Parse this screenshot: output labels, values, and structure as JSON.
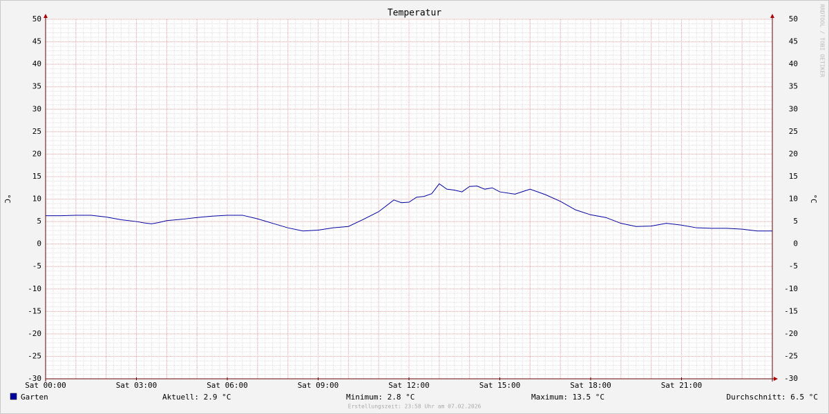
{
  "chart_data": {
    "type": "line",
    "title": "Temperatur",
    "y_label": "°C",
    "watermark": "RRDTOOL / TOBI OETIKER",
    "x": [
      0,
      0.5,
      1,
      1.5,
      2,
      2.5,
      3,
      3.25,
      3.5,
      3.75,
      4,
      4.5,
      5,
      5.5,
      6,
      6.5,
      7,
      7.5,
      8,
      8.5,
      9,
      9.5,
      10,
      10.5,
      11,
      11.5,
      11.75,
      12,
      12.25,
      12.5,
      12.75,
      13,
      13.25,
      13.5,
      13.75,
      14,
      14.25,
      14.5,
      14.75,
      15,
      15.5,
      16,
      16.5,
      17,
      17.5,
      18,
      18.5,
      19,
      19.5,
      20,
      20.5,
      21,
      21.5,
      22,
      22.5,
      23,
      23.5,
      24
    ],
    "series": [
      {
        "name": "Garten",
        "color": "#0000a0",
        "values": [
          6.3,
          6.3,
          6.4,
          6.4,
          6.0,
          5.4,
          5.0,
          4.7,
          4.5,
          4.8,
          5.2,
          5.5,
          5.9,
          6.2,
          6.4,
          6.4,
          5.6,
          4.6,
          3.6,
          2.9,
          3.1,
          3.6,
          3.9,
          5.5,
          7.2,
          9.8,
          9.2,
          9.3,
          10.4,
          10.6,
          11.2,
          13.4,
          12.2,
          12.0,
          11.6,
          12.8,
          12.9,
          12.2,
          12.5,
          11.6,
          11.1,
          12.2,
          11.0,
          9.5,
          7.6,
          6.5,
          5.9,
          4.6,
          3.9,
          4.0,
          4.6,
          4.2,
          3.6,
          3.5,
          3.5,
          3.3,
          2.9,
          2.9
        ]
      }
    ],
    "xlim": [
      0,
      24
    ],
    "xticks": [
      {
        "value": 0,
        "label": "Sat 00:00"
      },
      {
        "value": 3,
        "label": "Sat 03:00"
      },
      {
        "value": 6,
        "label": "Sat 06:00"
      },
      {
        "value": 9,
        "label": "Sat 09:00"
      },
      {
        "value": 12,
        "label": "Sat 12:00"
      },
      {
        "value": 15,
        "label": "Sat 15:00"
      },
      {
        "value": 18,
        "label": "Sat 18:00"
      },
      {
        "value": 21,
        "label": "Sat 21:00"
      }
    ],
    "ylim": [
      -30,
      50
    ],
    "yticks": [
      -30,
      -25,
      -20,
      -15,
      -10,
      -5,
      0,
      5,
      10,
      15,
      20,
      25,
      30,
      35,
      40,
      45,
      50
    ],
    "x_major_grid_step": 1,
    "x_minor_grid_step": 0.25,
    "y_minor_grid_step": 1,
    "grid": true,
    "stats": [
      "Aktuell: 2.9 °C",
      "Minimum: 2.8 °C",
      "Maximum: 13.5 °C",
      "Durchschnitt: 6.5 °C"
    ],
    "footer": "Erstellungszeit: 23:58 Uhr am 07.02.2026"
  }
}
